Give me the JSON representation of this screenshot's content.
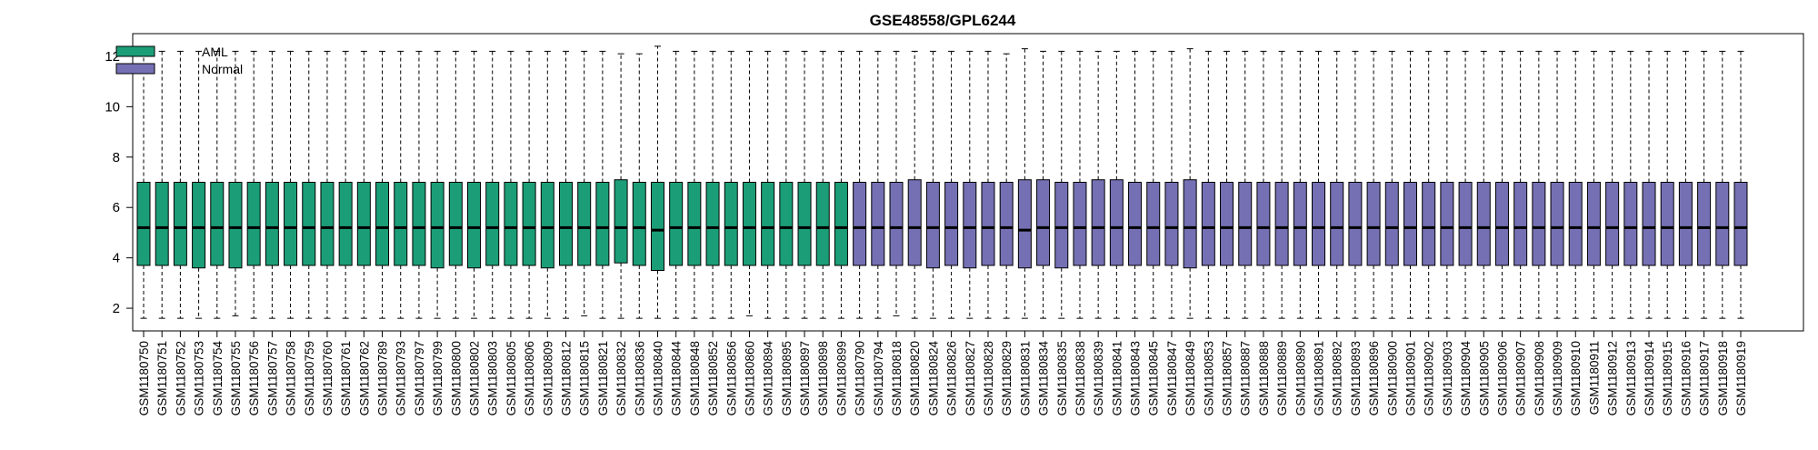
{
  "chart_data": {
    "type": "box",
    "title": "GSE48558/GPL6244",
    "xlabel": "",
    "ylabel": "",
    "ylim": [
      1.1,
      12.9
    ],
    "yticks": [
      2,
      4,
      6,
      8,
      10,
      12
    ],
    "legend_position": "top-left",
    "groups": [
      {
        "name": "AML",
        "color": "#1b9e77"
      },
      {
        "name": "Normal",
        "color": "#7570b3"
      }
    ],
    "samples": [
      {
        "id": "GSM1180750",
        "group": 0,
        "min": 1.6,
        "q1": 3.7,
        "median": 5.2,
        "q3": 7.0,
        "max": 12.2
      },
      {
        "id": "GSM1180751",
        "group": 0,
        "min": 1.6,
        "q1": 3.7,
        "median": 5.2,
        "q3": 7.0,
        "max": 12.2
      },
      {
        "id": "GSM1180752",
        "group": 0,
        "min": 1.6,
        "q1": 3.7,
        "median": 5.2,
        "q3": 7.0,
        "max": 12.2
      },
      {
        "id": "GSM1180753",
        "group": 0,
        "min": 1.6,
        "q1": 3.6,
        "median": 5.2,
        "q3": 7.0,
        "max": 12.2
      },
      {
        "id": "GSM1180754",
        "group": 0,
        "min": 1.6,
        "q1": 3.7,
        "median": 5.2,
        "q3": 7.0,
        "max": 12.2
      },
      {
        "id": "GSM1180755",
        "group": 0,
        "min": 1.7,
        "q1": 3.6,
        "median": 5.2,
        "q3": 7.0,
        "max": 12.2
      },
      {
        "id": "GSM1180756",
        "group": 0,
        "min": 1.6,
        "q1": 3.7,
        "median": 5.2,
        "q3": 7.0,
        "max": 12.2
      },
      {
        "id": "GSM1180757",
        "group": 0,
        "min": 1.6,
        "q1": 3.7,
        "median": 5.2,
        "q3": 7.0,
        "max": 12.2
      },
      {
        "id": "GSM1180758",
        "group": 0,
        "min": 1.6,
        "q1": 3.7,
        "median": 5.2,
        "q3": 7.0,
        "max": 12.2
      },
      {
        "id": "GSM1180759",
        "group": 0,
        "min": 1.6,
        "q1": 3.7,
        "median": 5.2,
        "q3": 7.0,
        "max": 12.2
      },
      {
        "id": "GSM1180760",
        "group": 0,
        "min": 1.6,
        "q1": 3.7,
        "median": 5.2,
        "q3": 7.0,
        "max": 12.2
      },
      {
        "id": "GSM1180761",
        "group": 0,
        "min": 1.6,
        "q1": 3.7,
        "median": 5.2,
        "q3": 7.0,
        "max": 12.2
      },
      {
        "id": "GSM1180762",
        "group": 0,
        "min": 1.6,
        "q1": 3.7,
        "median": 5.2,
        "q3": 7.0,
        "max": 12.2
      },
      {
        "id": "GSM1180789",
        "group": 0,
        "min": 1.6,
        "q1": 3.7,
        "median": 5.2,
        "q3": 7.0,
        "max": 12.2
      },
      {
        "id": "GSM1180793",
        "group": 0,
        "min": 1.6,
        "q1": 3.7,
        "median": 5.2,
        "q3": 7.0,
        "max": 12.2
      },
      {
        "id": "GSM1180797",
        "group": 0,
        "min": 1.6,
        "q1": 3.7,
        "median": 5.2,
        "q3": 7.0,
        "max": 12.2
      },
      {
        "id": "GSM1180799",
        "group": 0,
        "min": 1.6,
        "q1": 3.6,
        "median": 5.2,
        "q3": 7.0,
        "max": 12.2
      },
      {
        "id": "GSM1180800",
        "group": 0,
        "min": 1.6,
        "q1": 3.7,
        "median": 5.2,
        "q3": 7.0,
        "max": 12.2
      },
      {
        "id": "GSM1180802",
        "group": 0,
        "min": 1.6,
        "q1": 3.6,
        "median": 5.2,
        "q3": 7.0,
        "max": 12.2
      },
      {
        "id": "GSM1180803",
        "group": 0,
        "min": 1.6,
        "q1": 3.7,
        "median": 5.2,
        "q3": 7.0,
        "max": 12.2
      },
      {
        "id": "GSM1180805",
        "group": 0,
        "min": 1.6,
        "q1": 3.7,
        "median": 5.2,
        "q3": 7.0,
        "max": 12.2
      },
      {
        "id": "GSM1180806",
        "group": 0,
        "min": 1.6,
        "q1": 3.7,
        "median": 5.2,
        "q3": 7.0,
        "max": 12.2
      },
      {
        "id": "GSM1180809",
        "group": 0,
        "min": 1.6,
        "q1": 3.6,
        "median": 5.2,
        "q3": 7.0,
        "max": 12.2
      },
      {
        "id": "GSM1180812",
        "group": 0,
        "min": 1.6,
        "q1": 3.7,
        "median": 5.2,
        "q3": 7.0,
        "max": 12.2
      },
      {
        "id": "GSM1180815",
        "group": 0,
        "min": 1.7,
        "q1": 3.7,
        "median": 5.2,
        "q3": 7.0,
        "max": 12.2
      },
      {
        "id": "GSM1180821",
        "group": 0,
        "min": 1.6,
        "q1": 3.7,
        "median": 5.2,
        "q3": 7.0,
        "max": 12.2
      },
      {
        "id": "GSM1180832",
        "group": 0,
        "min": 1.6,
        "q1": 3.8,
        "median": 5.2,
        "q3": 7.1,
        "max": 12.1
      },
      {
        "id": "GSM1180836",
        "group": 0,
        "min": 1.6,
        "q1": 3.7,
        "median": 5.2,
        "q3": 7.0,
        "max": 12.1
      },
      {
        "id": "GSM1180840",
        "group": 0,
        "min": 1.6,
        "q1": 3.5,
        "median": 5.1,
        "q3": 7.0,
        "max": 12.4
      },
      {
        "id": "GSM1180844",
        "group": 0,
        "min": 1.6,
        "q1": 3.7,
        "median": 5.2,
        "q3": 7.0,
        "max": 12.2
      },
      {
        "id": "GSM1180848",
        "group": 0,
        "min": 1.6,
        "q1": 3.7,
        "median": 5.2,
        "q3": 7.0,
        "max": 12.2
      },
      {
        "id": "GSM1180852",
        "group": 0,
        "min": 1.6,
        "q1": 3.7,
        "median": 5.2,
        "q3": 7.0,
        "max": 12.2
      },
      {
        "id": "GSM1180856",
        "group": 0,
        "min": 1.6,
        "q1": 3.7,
        "median": 5.2,
        "q3": 7.0,
        "max": 12.2
      },
      {
        "id": "GSM1180860",
        "group": 0,
        "min": 1.7,
        "q1": 3.7,
        "median": 5.2,
        "q3": 7.0,
        "max": 12.2
      },
      {
        "id": "GSM1180894",
        "group": 0,
        "min": 1.6,
        "q1": 3.7,
        "median": 5.2,
        "q3": 7.0,
        "max": 12.2
      },
      {
        "id": "GSM1180895",
        "group": 0,
        "min": 1.6,
        "q1": 3.7,
        "median": 5.2,
        "q3": 7.0,
        "max": 12.2
      },
      {
        "id": "GSM1180897",
        "group": 0,
        "min": 1.6,
        "q1": 3.7,
        "median": 5.2,
        "q3": 7.0,
        "max": 12.2
      },
      {
        "id": "GSM1180898",
        "group": 0,
        "min": 1.6,
        "q1": 3.7,
        "median": 5.2,
        "q3": 7.0,
        "max": 12.2
      },
      {
        "id": "GSM1180899",
        "group": 0,
        "min": 1.6,
        "q1": 3.7,
        "median": 5.2,
        "q3": 7.0,
        "max": 12.2
      },
      {
        "id": "GSM1180790",
        "group": 1,
        "min": 1.6,
        "q1": 3.7,
        "median": 5.2,
        "q3": 7.0,
        "max": 12.2
      },
      {
        "id": "GSM1180794",
        "group": 1,
        "min": 1.6,
        "q1": 3.7,
        "median": 5.2,
        "q3": 7.0,
        "max": 12.2
      },
      {
        "id": "GSM1180818",
        "group": 1,
        "min": 1.7,
        "q1": 3.7,
        "median": 5.2,
        "q3": 7.0,
        "max": 12.2
      },
      {
        "id": "GSM1180820",
        "group": 1,
        "min": 1.6,
        "q1": 3.7,
        "median": 5.2,
        "q3": 7.1,
        "max": 12.2
      },
      {
        "id": "GSM1180824",
        "group": 1,
        "min": 1.6,
        "q1": 3.6,
        "median": 5.2,
        "q3": 7.0,
        "max": 12.2
      },
      {
        "id": "GSM1180826",
        "group": 1,
        "min": 1.6,
        "q1": 3.7,
        "median": 5.2,
        "q3": 7.0,
        "max": 12.2
      },
      {
        "id": "GSM1180827",
        "group": 1,
        "min": 1.6,
        "q1": 3.6,
        "median": 5.2,
        "q3": 7.0,
        "max": 12.2
      },
      {
        "id": "GSM1180828",
        "group": 1,
        "min": 1.6,
        "q1": 3.7,
        "median": 5.2,
        "q3": 7.0,
        "max": 12.2
      },
      {
        "id": "GSM1180829",
        "group": 1,
        "min": 1.6,
        "q1": 3.7,
        "median": 5.2,
        "q3": 7.0,
        "max": 12.1
      },
      {
        "id": "GSM1180831",
        "group": 1,
        "min": 1.6,
        "q1": 3.6,
        "median": 5.1,
        "q3": 7.1,
        "max": 12.3
      },
      {
        "id": "GSM1180834",
        "group": 1,
        "min": 1.6,
        "q1": 3.7,
        "median": 5.2,
        "q3": 7.1,
        "max": 12.2
      },
      {
        "id": "GSM1180835",
        "group": 1,
        "min": 1.6,
        "q1": 3.6,
        "median": 5.2,
        "q3": 7.0,
        "max": 12.2
      },
      {
        "id": "GSM1180838",
        "group": 1,
        "min": 1.6,
        "q1": 3.7,
        "median": 5.2,
        "q3": 7.0,
        "max": 12.2
      },
      {
        "id": "GSM1180839",
        "group": 1,
        "min": 1.6,
        "q1": 3.7,
        "median": 5.2,
        "q3": 7.1,
        "max": 12.2
      },
      {
        "id": "GSM1180841",
        "group": 1,
        "min": 1.6,
        "q1": 3.7,
        "median": 5.2,
        "q3": 7.1,
        "max": 12.2
      },
      {
        "id": "GSM1180843",
        "group": 1,
        "min": 1.6,
        "q1": 3.7,
        "median": 5.2,
        "q3": 7.0,
        "max": 12.2
      },
      {
        "id": "GSM1180845",
        "group": 1,
        "min": 1.6,
        "q1": 3.7,
        "median": 5.2,
        "q3": 7.0,
        "max": 12.2
      },
      {
        "id": "GSM1180847",
        "group": 1,
        "min": 1.6,
        "q1": 3.7,
        "median": 5.2,
        "q3": 7.0,
        "max": 12.2
      },
      {
        "id": "GSM1180849",
        "group": 1,
        "min": 1.6,
        "q1": 3.6,
        "median": 5.2,
        "q3": 7.1,
        "max": 12.3
      },
      {
        "id": "GSM1180853",
        "group": 1,
        "min": 1.6,
        "q1": 3.7,
        "median": 5.2,
        "q3": 7.0,
        "max": 12.2
      },
      {
        "id": "GSM1180857",
        "group": 1,
        "min": 1.6,
        "q1": 3.7,
        "median": 5.2,
        "q3": 7.0,
        "max": 12.2
      },
      {
        "id": "GSM1180887",
        "group": 1,
        "min": 1.6,
        "q1": 3.7,
        "median": 5.2,
        "q3": 7.0,
        "max": 12.2
      },
      {
        "id": "GSM1180888",
        "group": 1,
        "min": 1.6,
        "q1": 3.7,
        "median": 5.2,
        "q3": 7.0,
        "max": 12.2
      },
      {
        "id": "GSM1180889",
        "group": 1,
        "min": 1.6,
        "q1": 3.7,
        "median": 5.2,
        "q3": 7.0,
        "max": 12.2
      },
      {
        "id": "GSM1180890",
        "group": 1,
        "min": 1.6,
        "q1": 3.7,
        "median": 5.2,
        "q3": 7.0,
        "max": 12.2
      },
      {
        "id": "GSM1180891",
        "group": 1,
        "min": 1.6,
        "q1": 3.7,
        "median": 5.2,
        "q3": 7.0,
        "max": 12.2
      },
      {
        "id": "GSM1180892",
        "group": 1,
        "min": 1.6,
        "q1": 3.7,
        "median": 5.2,
        "q3": 7.0,
        "max": 12.2
      },
      {
        "id": "GSM1180893",
        "group": 1,
        "min": 1.6,
        "q1": 3.7,
        "median": 5.2,
        "q3": 7.0,
        "max": 12.2
      },
      {
        "id": "GSM1180896",
        "group": 1,
        "min": 1.6,
        "q1": 3.7,
        "median": 5.2,
        "q3": 7.0,
        "max": 12.2
      },
      {
        "id": "GSM1180900",
        "group": 1,
        "min": 1.6,
        "q1": 3.7,
        "median": 5.2,
        "q3": 7.0,
        "max": 12.2
      },
      {
        "id": "GSM1180901",
        "group": 1,
        "min": 1.6,
        "q1": 3.7,
        "median": 5.2,
        "q3": 7.0,
        "max": 12.2
      },
      {
        "id": "GSM1180902",
        "group": 1,
        "min": 1.6,
        "q1": 3.7,
        "median": 5.2,
        "q3": 7.0,
        "max": 12.2
      },
      {
        "id": "GSM1180903",
        "group": 1,
        "min": 1.6,
        "q1": 3.7,
        "median": 5.2,
        "q3": 7.0,
        "max": 12.2
      },
      {
        "id": "GSM1180904",
        "group": 1,
        "min": 1.6,
        "q1": 3.7,
        "median": 5.2,
        "q3": 7.0,
        "max": 12.2
      },
      {
        "id": "GSM1180905",
        "group": 1,
        "min": 1.6,
        "q1": 3.7,
        "median": 5.2,
        "q3": 7.0,
        "max": 12.2
      },
      {
        "id": "GSM1180906",
        "group": 1,
        "min": 1.6,
        "q1": 3.7,
        "median": 5.2,
        "q3": 7.0,
        "max": 12.2
      },
      {
        "id": "GSM1180907",
        "group": 1,
        "min": 1.6,
        "q1": 3.7,
        "median": 5.2,
        "q3": 7.0,
        "max": 12.2
      },
      {
        "id": "GSM1180908",
        "group": 1,
        "min": 1.6,
        "q1": 3.7,
        "median": 5.2,
        "q3": 7.0,
        "max": 12.2
      },
      {
        "id": "GSM1180909",
        "group": 1,
        "min": 1.6,
        "q1": 3.7,
        "median": 5.2,
        "q3": 7.0,
        "max": 12.2
      },
      {
        "id": "GSM1180910",
        "group": 1,
        "min": 1.6,
        "q1": 3.7,
        "median": 5.2,
        "q3": 7.0,
        "max": 12.2
      },
      {
        "id": "GSM1180911",
        "group": 1,
        "min": 1.6,
        "q1": 3.7,
        "median": 5.2,
        "q3": 7.0,
        "max": 12.2
      },
      {
        "id": "GSM1180912",
        "group": 1,
        "min": 1.6,
        "q1": 3.7,
        "median": 5.2,
        "q3": 7.0,
        "max": 12.2
      },
      {
        "id": "GSM1180913",
        "group": 1,
        "min": 1.6,
        "q1": 3.7,
        "median": 5.2,
        "q3": 7.0,
        "max": 12.2
      },
      {
        "id": "GSM1180914",
        "group": 1,
        "min": 1.6,
        "q1": 3.7,
        "median": 5.2,
        "q3": 7.0,
        "max": 12.2
      },
      {
        "id": "GSM1180915",
        "group": 1,
        "min": 1.6,
        "q1": 3.7,
        "median": 5.2,
        "q3": 7.0,
        "max": 12.2
      },
      {
        "id": "GSM1180916",
        "group": 1,
        "min": 1.6,
        "q1": 3.7,
        "median": 5.2,
        "q3": 7.0,
        "max": 12.2
      },
      {
        "id": "GSM1180917",
        "group": 1,
        "min": 1.6,
        "q1": 3.7,
        "median": 5.2,
        "q3": 7.0,
        "max": 12.2
      },
      {
        "id": "GSM1180918",
        "group": 1,
        "min": 1.6,
        "q1": 3.7,
        "median": 5.2,
        "q3": 7.0,
        "max": 12.2
      },
      {
        "id": "GSM1180919",
        "group": 1,
        "min": 1.6,
        "q1": 3.7,
        "median": 5.2,
        "q3": 7.0,
        "max": 12.2
      }
    ]
  }
}
